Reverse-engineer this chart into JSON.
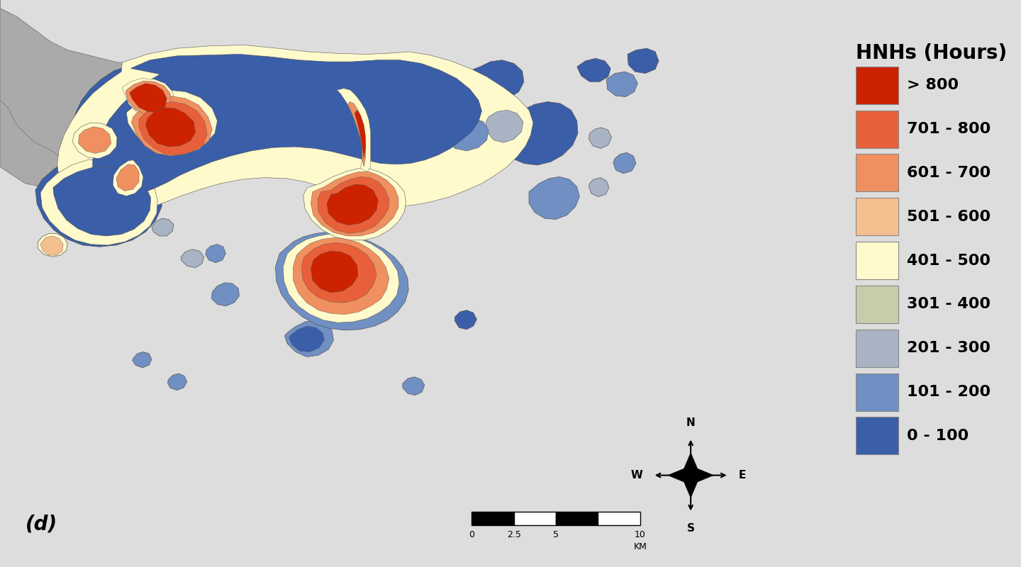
{
  "title": "HNHs (Hours)",
  "legend_labels": [
    "> 800",
    "701 - 800",
    "601 - 700",
    "501 - 600",
    "401 - 500",
    "301 - 400",
    "201 - 300",
    "101 - 200",
    "0 - 100"
  ],
  "legend_colors": [
    "#CC2200",
    "#E8603A",
    "#F09060",
    "#F5C090",
    "#FFFACC",
    "#C8CCAA",
    "#A8B4C4",
    "#7090C4",
    "#3A5EA8"
  ],
  "sea_color": "#87CEEB",
  "mainland_color": "#AAAAAA",
  "border_color": "#666666",
  "label_d": "(d)",
  "fig_width": 14.4,
  "fig_height": 8.0,
  "legend_fontsize": 16,
  "legend_title_fontsize": 20
}
